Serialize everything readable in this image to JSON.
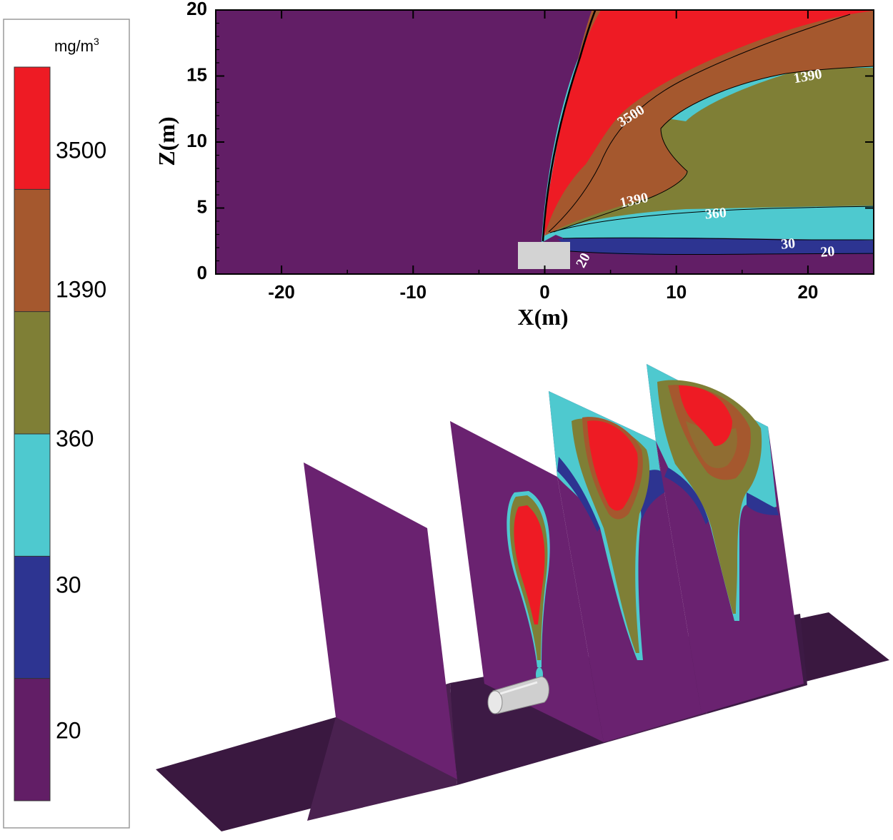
{
  "chart_data": [
    {
      "type": "heatmap",
      "title": "",
      "xlabel": "X(m)",
      "ylabel": "Z(m)",
      "xlim": [
        -25,
        25
      ],
      "ylim": [
        0,
        20
      ],
      "x_ticks": [
        -20,
        -10,
        0,
        10,
        20
      ],
      "x_tick_labels": [
        "-20",
        "-10",
        "0",
        "10",
        "20"
      ],
      "y_ticks": [
        0,
        5,
        10,
        15,
        20
      ],
      "y_tick_labels": [
        "0",
        "5",
        "10",
        "15",
        "20"
      ],
      "contour_levels_mg_m3": [
        20,
        30,
        360,
        1390,
        3500
      ],
      "contour_labels": [
        {
          "text": "3500",
          "x": 6.6,
          "y": 11.9,
          "rotate": -32
        },
        {
          "text": "1390",
          "x": 20.0,
          "y": 14.9,
          "rotate": -10
        },
        {
          "text": "1390",
          "x": 6.8,
          "y": 5.5,
          "rotate": -12
        },
        {
          "text": "360",
          "x": 13.0,
          "y": 4.5,
          "rotate": -5
        },
        {
          "text": "30",
          "x": 18.5,
          "y": 2.2,
          "rotate": -5
        },
        {
          "text": "20",
          "x": 21.5,
          "y": 1.6,
          "rotate": -5
        },
        {
          "text": "20",
          "x": 3.0,
          "y": 1.0,
          "rotate": -62
        }
      ]
    },
    {
      "type": "heatmap",
      "title": "",
      "description_label": "3D perspective slices"
    }
  ],
  "legend": {
    "unit_label": "mg/m",
    "unit_superscript": "3",
    "tick_labels": [
      "3500",
      "1390",
      "360",
      "30",
      "20"
    ],
    "bands": [
      {
        "name": ">3500",
        "color": "#ee1b24"
      },
      {
        "name": "1390-3500",
        "color": "#a5582e"
      },
      {
        "name": "360-1390",
        "color": "#7f7f36"
      },
      {
        "name": "30-360",
        "color": "#4ec9cf"
      },
      {
        "name": "20-30",
        "color": "#2d3491"
      },
      {
        "name": "<20",
        "color": "#621e66"
      }
    ]
  },
  "colors": {
    "purple": "#621e66",
    "blue": "#2d3491",
    "cyan": "#4ec9cf",
    "olive": "#7f7f36",
    "brown": "#a5582e",
    "red": "#ee1b24",
    "ground": "#3a1840",
    "ground_light": "#4a2150",
    "source": "#d3d3d3"
  }
}
